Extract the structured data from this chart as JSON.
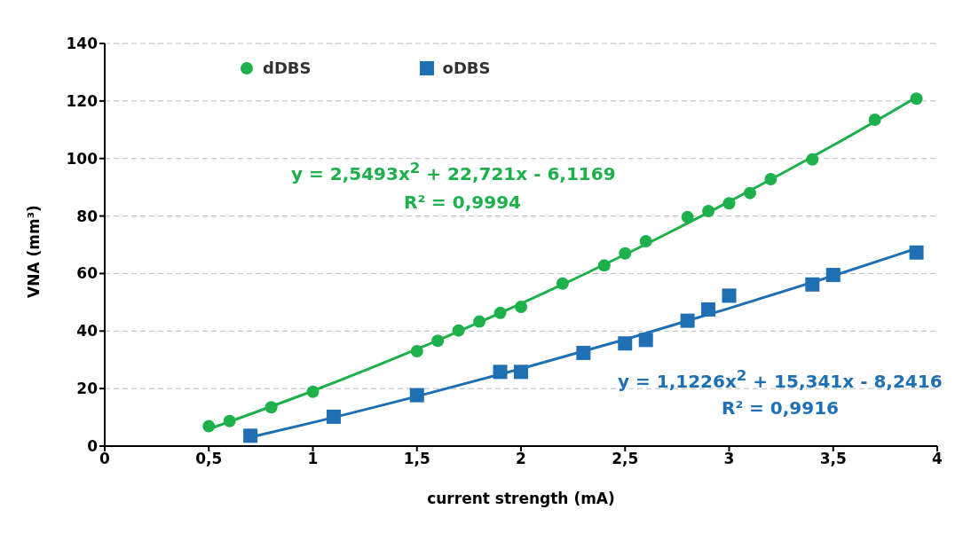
{
  "chart_data": {
    "type": "scatter",
    "xlabel": "current strength (mA)",
    "ylabel": "VNA (mm³)",
    "xlim": [
      0,
      4
    ],
    "xticks": [
      0,
      {
        "value": 0.5,
        "label": "0,5"
      },
      1,
      {
        "value": 1.5,
        "label": "1,5"
      },
      2,
      {
        "value": 2.5,
        "label": "2,5"
      },
      3,
      {
        "value": 3.5,
        "label": "3,5"
      },
      4
    ],
    "ylim": [
      0,
      140
    ],
    "yticks": [
      0,
      20,
      40,
      60,
      80,
      100,
      120,
      140
    ],
    "grid": "y",
    "legend": "top",
    "series": [
      {
        "name": "dDBS",
        "marker": "circle",
        "color": "#1db04b",
        "x": [
          0.5,
          0.6,
          0.8,
          1.0,
          1.5,
          1.6,
          1.7,
          1.8,
          1.9,
          2.0,
          2.2,
          2.4,
          2.5,
          2.6,
          2.8,
          2.9,
          3.0,
          3.1,
          3.2,
          3.4,
          3.7,
          3.9
        ],
        "values": [
          6.9,
          8.7,
          13.5,
          18.9,
          33.0,
          36.6,
          40.2,
          43.3,
          46.3,
          48.4,
          56.5,
          62.8,
          67.0,
          71.2,
          79.6,
          81.7,
          84.4,
          88.0,
          92.8,
          99.7,
          113.5,
          120.8
        ]
      },
      {
        "name": "oDBS",
        "marker": "square",
        "color": "#1f6fb5",
        "x": [
          0.7,
          1.1,
          1.5,
          1.9,
          2.0,
          2.3,
          2.5,
          2.6,
          2.8,
          2.9,
          3.0,
          3.4,
          3.5,
          3.9
        ],
        "values": [
          3.6,
          10.2,
          17.7,
          25.8,
          25.8,
          32.4,
          35.7,
          36.9,
          43.6,
          47.5,
          52.3,
          56.2,
          59.5,
          67.3
        ]
      },
      {
        "type": "line",
        "marker": "none",
        "color": "#1db04b",
        "x": [
          0.5,
          1,
          1.5,
          2,
          2.5,
          3,
          3.5,
          3.9
        ],
        "values": [
          5.9,
          19.2,
          33.7,
          49.5,
          66.6,
          85.0,
          104.6,
          121.3
        ]
      },
      {
        "type": "line",
        "marker": "none",
        "color": "#1f6fb5",
        "x": [
          0.7,
          1,
          1.5,
          2,
          2.5,
          3,
          3.5,
          3.9
        ],
        "values": [
          3.1,
          8.2,
          17.3,
          26.9,
          37.1,
          47.9,
          59.2,
          68.7
        ]
      }
    ],
    "annotations": [
      "y = 2,5493x$^{2}$ + 22,721x - 6,1169",
      "R² = 0,9994",
      "y = 1,1226x$^{2}$ + 15,341x - 8,2416",
      "R² = 0,9916"
    ]
  }
}
